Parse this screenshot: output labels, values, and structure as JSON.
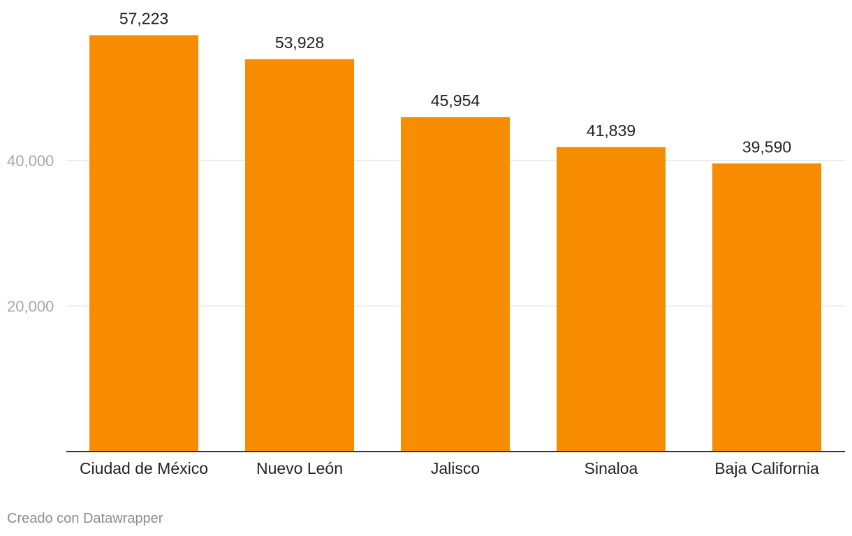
{
  "chart_data": {
    "type": "bar",
    "categories": [
      "Ciudad de México",
      "Nuevo León",
      "Jalisco",
      "Sinaloa",
      "Baja California"
    ],
    "values": [
      57223,
      53928,
      45954,
      41839,
      39590
    ],
    "value_labels": [
      "57,223",
      "53,928",
      "45,954",
      "41,839",
      "39,590"
    ],
    "title": "",
    "xlabel": "",
    "ylabel": "",
    "ylim": [
      0,
      60000
    ],
    "y_ticks": [
      20000,
      40000
    ],
    "y_tick_labels": [
      "20,000",
      "40,000"
    ],
    "grid": true,
    "bar_color": "#f78c00"
  },
  "footer": {
    "credit": "Creado con Datawrapper"
  }
}
